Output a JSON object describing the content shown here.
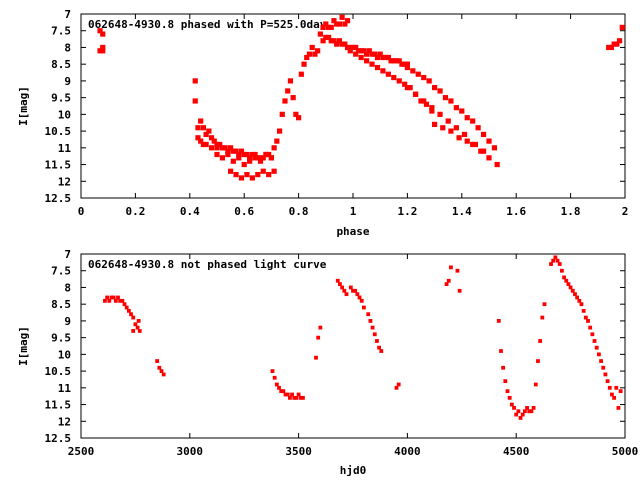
{
  "chart_data": [
    {
      "type": "scatter",
      "title": "062648-4930.8 phased with P=525.0day",
      "xlabel": "phase",
      "ylabel": "I[mag]",
      "xlim": [
        0,
        2
      ],
      "ylim": [
        12.5,
        7
      ],
      "y_inverted": true,
      "grid": false,
      "xticks": [
        0,
        0.2,
        0.4,
        0.6,
        0.8,
        1,
        1.2,
        1.4,
        1.6,
        1.8,
        2
      ],
      "xtick_labels": [
        "0",
        "0.2",
        "0.4",
        "0.6",
        "0.8",
        "1",
        "1.2",
        "1.4",
        "1.6",
        "1.8",
        "2"
      ],
      "yticks": [
        7,
        7.5,
        8,
        8.5,
        9,
        9.5,
        10,
        10.5,
        11,
        11.5,
        12,
        12.5
      ],
      "ytick_labels": [
        "7",
        "7.5",
        "8",
        "8.5",
        "9",
        "9.5",
        "10",
        "10.5",
        "11",
        "11.5",
        "12",
        "12.5"
      ],
      "color": "#ff0000",
      "series": [
        {
          "x": [
            0.07,
            0.08,
            0.08,
            0.07,
            0.08,
            0.42,
            0.42,
            0.43,
            0.43,
            0.44,
            0.44,
            0.45,
            0.45,
            0.46,
            0.47,
            0.48,
            0.49,
            0.5,
            0.5,
            0.51,
            0.52,
            0.53,
            0.54,
            0.55,
            0.56,
            0.57,
            0.58,
            0.59,
            0.6,
            0.61,
            0.62,
            0.63,
            0.64,
            0.65,
            0.66,
            0.67,
            0.68,
            0.69,
            0.7,
            0.46,
            0.48,
            0.5,
            0.52,
            0.54,
            0.56,
            0.58,
            0.6,
            0.62,
            0.64,
            0.66,
            0.68,
            0.7,
            0.55,
            0.57,
            0.59,
            0.61,
            0.63,
            0.65,
            0.67,
            0.69,
            0.71,
            0.71,
            0.72,
            0.73,
            0.74,
            0.75,
            0.76,
            0.77,
            0.78,
            0.79,
            0.8,
            0.81,
            0.82,
            0.83,
            0.84,
            0.85,
            0.86,
            0.87,
            0.88,
            0.89,
            0.9,
            0.91,
            0.92,
            0.93,
            0.94,
            0.95,
            0.96,
            0.97,
            0.98,
            0.89,
            0.9,
            0.91,
            0.92,
            0.93,
            0.94,
            0.95,
            0.96,
            0.97,
            0.98,
            0.99,
            1.0,
            1.01,
            1.02,
            1.03,
            1.04,
            1.05,
            1.06,
            1.07,
            1.08,
            1.09,
            1.1,
            1.11,
            1.12,
            1.13,
            1.14,
            1.15,
            1.16,
            1.17,
            1.18,
            1.19,
            1.2,
            0.99,
            1.01,
            1.03,
            1.05,
            1.07,
            1.09,
            1.11,
            1.13,
            1.15,
            1.17,
            1.19,
            1.21,
            1.23,
            1.25,
            1.27,
            1.29,
            1.2,
            1.22,
            1.24,
            1.26,
            1.28,
            1.3,
            1.32,
            1.34,
            1.36,
            1.38,
            1.4,
            1.42,
            1.44,
            1.46,
            1.48,
            1.5,
            1.52,
            1.2,
            1.23,
            1.26,
            1.29,
            1.32,
            1.35,
            1.38,
            1.41,
            1.44,
            1.47,
            1.5,
            1.53,
            1.3,
            1.33,
            1.36,
            1.39,
            1.42,
            1.45,
            1.48,
            1.94,
            1.95,
            1.96,
            1.97,
            1.98,
            1.99
          ],
          "y": [
            7.5,
            7.6,
            8.1,
            8.1,
            8.0,
            9.0,
            9.6,
            10.4,
            10.7,
            10.2,
            10.8,
            10.4,
            10.9,
            10.6,
            10.5,
            10.7,
            10.8,
            10.9,
            11.0,
            10.9,
            11.0,
            11.0,
            11.1,
            11.0,
            11.1,
            11.1,
            11.2,
            11.1,
            11.2,
            11.2,
            11.3,
            11.2,
            11.2,
            11.3,
            11.3,
            11.3,
            11.2,
            11.2,
            11.3,
            10.9,
            11.0,
            11.2,
            11.3,
            11.2,
            11.4,
            11.3,
            11.5,
            11.4,
            11.3,
            11.4,
            11.2,
            11.3,
            11.7,
            11.8,
            11.9,
            11.8,
            11.9,
            11.8,
            11.7,
            11.8,
            11.7,
            11.0,
            10.8,
            10.5,
            10.0,
            9.6,
            9.3,
            9.0,
            9.5,
            10.0,
            10.1,
            8.8,
            8.5,
            8.3,
            8.2,
            8.0,
            8.2,
            8.1,
            7.6,
            7.4,
            7.3,
            7.4,
            7.4,
            7.2,
            7.3,
            7.3,
            7.1,
            7.3,
            7.2,
            7.8,
            7.7,
            7.7,
            7.8,
            7.8,
            7.9,
            7.8,
            7.9,
            7.9,
            8.0,
            8.0,
            8.0,
            8.0,
            8.1,
            8.1,
            8.1,
            8.2,
            8.1,
            8.2,
            8.2,
            8.3,
            8.2,
            8.3,
            8.3,
            8.3,
            8.4,
            8.4,
            8.4,
            8.4,
            8.5,
            8.5,
            8.5,
            8.1,
            8.2,
            8.3,
            8.4,
            8.5,
            8.6,
            8.7,
            8.8,
            8.9,
            9.0,
            9.1,
            9.2,
            9.4,
            9.6,
            9.7,
            9.9,
            8.6,
            8.7,
            8.8,
            8.9,
            9.0,
            9.2,
            9.3,
            9.5,
            9.6,
            9.8,
            9.9,
            10.1,
            10.2,
            10.4,
            10.6,
            10.8,
            11.0,
            9.2,
            9.4,
            9.6,
            9.8,
            10.0,
            10.2,
            10.4,
            10.6,
            10.9,
            11.1,
            11.3,
            11.5,
            10.3,
            10.4,
            10.5,
            10.7,
            10.8,
            10.9,
            11.1,
            8.0,
            8.0,
            7.9,
            7.9,
            7.8,
            7.4
          ]
        }
      ]
    },
    {
      "type": "scatter",
      "title": "062648-4930.8 not phased light curve",
      "xlabel": "hjd0",
      "ylabel": "I[mag]",
      "xlim": [
        2500,
        5000
      ],
      "ylim": [
        12.5,
        7
      ],
      "y_inverted": true,
      "grid": false,
      "xticks": [
        2500,
        3000,
        3500,
        4000,
        4500,
        5000
      ],
      "xtick_labels": [
        "2500",
        "3000",
        "3500",
        "4000",
        "4500",
        "5000"
      ],
      "yticks": [
        7,
        7.5,
        8,
        8.5,
        9,
        9.5,
        10,
        10.5,
        11,
        11.5,
        12,
        12.5
      ],
      "ytick_labels": [
        "7",
        "7.5",
        "8",
        "8.5",
        "9",
        "9.5",
        "10",
        "10.5",
        "11",
        "11.5",
        "12",
        "12.5"
      ],
      "color": "#ff0000",
      "series": [
        {
          "x": [
            2610,
            2620,
            2630,
            2640,
            2650,
            2660,
            2670,
            2680,
            2690,
            2700,
            2710,
            2720,
            2730,
            2740,
            2750,
            2760,
            2765,
            2770,
            2740,
            2850,
            2860,
            2870,
            2880,
            3380,
            3390,
            3400,
            3410,
            3420,
            3430,
            3440,
            3450,
            3460,
            3470,
            3480,
            3490,
            3500,
            3510,
            3520,
            3580,
            3590,
            3600,
            3680,
            3690,
            3700,
            3710,
            3720,
            3740,
            3750,
            3760,
            3770,
            3780,
            3790,
            3800,
            3820,
            3830,
            3840,
            3850,
            3860,
            3870,
            3880,
            3950,
            3960,
            4180,
            4190,
            4200,
            4230,
            4240,
            4420,
            4430,
            4440,
            4450,
            4460,
            4470,
            4480,
            4490,
            4500,
            4510,
            4520,
            4530,
            4540,
            4550,
            4560,
            4570,
            4580,
            4590,
            4600,
            4610,
            4620,
            4630,
            4660,
            4670,
            4680,
            4690,
            4700,
            4710,
            4720,
            4730,
            4740,
            4750,
            4760,
            4770,
            4780,
            4790,
            4800,
            4810,
            4820,
            4830,
            4840,
            4850,
            4860,
            4870,
            4880,
            4890,
            4900,
            4910,
            4920,
            4930,
            4940,
            4950,
            4960,
            4970,
            4980
          ],
          "y": [
            8.4,
            8.3,
            8.4,
            8.3,
            8.3,
            8.4,
            8.3,
            8.4,
            8.4,
            8.5,
            8.6,
            8.7,
            8.8,
            8.9,
            9.1,
            9.2,
            9.0,
            9.3,
            9.3,
            10.2,
            10.4,
            10.5,
            10.6,
            10.5,
            10.7,
            10.9,
            11.0,
            11.1,
            11.1,
            11.2,
            11.2,
            11.3,
            11.2,
            11.3,
            11.3,
            11.2,
            11.3,
            11.3,
            10.1,
            9.5,
            9.2,
            7.8,
            7.9,
            8.0,
            8.1,
            8.2,
            8.0,
            8.1,
            8.1,
            8.2,
            8.3,
            8.4,
            8.6,
            8.8,
            9.0,
            9.2,
            9.4,
            9.6,
            9.8,
            9.9,
            11.0,
            10.9,
            7.9,
            7.8,
            7.4,
            7.5,
            8.1,
            9.0,
            9.9,
            10.4,
            10.8,
            11.1,
            11.3,
            11.5,
            11.6,
            11.8,
            11.7,
            11.9,
            11.8,
            11.7,
            11.6,
            11.7,
            11.7,
            11.6,
            10.9,
            10.2,
            9.6,
            8.9,
            8.5,
            7.3,
            7.2,
            7.1,
            7.2,
            7.3,
            7.5,
            7.7,
            7.8,
            7.9,
            8.0,
            8.1,
            8.2,
            8.3,
            8.4,
            8.5,
            8.7,
            8.9,
            9.0,
            9.2,
            9.4,
            9.6,
            9.8,
            10.0,
            10.2,
            10.4,
            10.6,
            10.8,
            11.0,
            11.2,
            11.3,
            11.0,
            11.6,
            11.1
          ]
        }
      ]
    }
  ]
}
